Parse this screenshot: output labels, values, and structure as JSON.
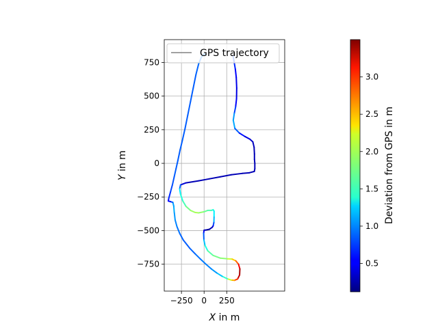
{
  "chart_data": {
    "type": "line",
    "series": [
      {
        "name": "GPS trajectory",
        "color": "#808080",
        "points": [
          [
            320,
            800
          ],
          [
            330,
            760
          ],
          [
            345,
            700
          ],
          [
            355,
            640
          ],
          [
            360,
            560
          ],
          [
            358,
            480
          ],
          [
            348,
            420
          ],
          [
            333,
            370
          ],
          [
            322,
            320
          ],
          [
            340,
            260
          ],
          [
            390,
            225
          ],
          [
            450,
            200
          ],
          [
            505,
            180
          ],
          [
            538,
            160
          ],
          [
            552,
            120
          ],
          [
            556,
            70
          ],
          [
            556,
            30
          ],
          [
            560,
            0
          ],
          [
            560,
            -40
          ],
          [
            555,
            -60
          ],
          [
            500,
            -70
          ],
          [
            420,
            -75
          ],
          [
            300,
            -85
          ],
          [
            180,
            -100
          ],
          [
            60,
            -115
          ],
          [
            -60,
            -130
          ],
          [
            -200,
            -145
          ],
          [
            -260,
            -160
          ],
          [
            -270,
            -190
          ],
          [
            -260,
            -230
          ],
          [
            -235,
            -280
          ],
          [
            -200,
            -320
          ],
          [
            -150,
            -350
          ],
          [
            -100,
            -365
          ],
          [
            -60,
            -368
          ],
          [
            0,
            -360
          ],
          [
            40,
            -350
          ],
          [
            80,
            -350
          ],
          [
            100,
            -345
          ],
          [
            110,
            -355
          ],
          [
            110,
            -400
          ],
          [
            108,
            -440
          ],
          [
            100,
            -465
          ],
          [
            90,
            -475
          ],
          [
            60,
            -490
          ],
          [
            25,
            -495
          ],
          [
            0,
            -497
          ],
          [
            -5,
            -520
          ],
          [
            -2,
            -570
          ],
          [
            10,
            -610
          ],
          [
            40,
            -650
          ],
          [
            100,
            -685
          ],
          [
            180,
            -705
          ],
          [
            260,
            -710
          ],
          [
            310,
            -712
          ],
          [
            350,
            -725
          ],
          [
            380,
            -750
          ],
          [
            395,
            -785
          ],
          [
            392,
            -830
          ],
          [
            370,
            -860
          ],
          [
            335,
            -870
          ],
          [
            300,
            -868
          ],
          [
            255,
            -858
          ],
          [
            200,
            -840
          ],
          [
            140,
            -815
          ],
          [
            80,
            -785
          ],
          [
            20,
            -750
          ],
          [
            -40,
            -712
          ],
          [
            -100,
            -672
          ],
          [
            -160,
            -630
          ],
          [
            -230,
            -570
          ],
          [
            -270,
            -520
          ],
          [
            -300,
            -470
          ],
          [
            -320,
            -420
          ],
          [
            -330,
            -360
          ],
          [
            -335,
            -318
          ],
          [
            -345,
            -290
          ],
          [
            -370,
            -285
          ],
          [
            -395,
            -280
          ],
          [
            -390,
            -260
          ],
          [
            -370,
            -210
          ],
          [
            -350,
            -160
          ],
          [
            -330,
            -100
          ],
          [
            -310,
            -40
          ],
          [
            -290,
            20
          ],
          [
            -265,
            100
          ],
          [
            -240,
            170
          ],
          [
            -210,
            260
          ],
          [
            -180,
            360
          ],
          [
            -150,
            460
          ],
          [
            -120,
            560
          ],
          [
            -90,
            660
          ],
          [
            -60,
            740
          ],
          [
            -30,
            790
          ],
          [
            0,
            812
          ],
          [
            20,
            808
          ]
        ],
        "deviation": [
          0.85,
          0.75,
          0.6,
          0.5,
          0.45,
          0.45,
          0.6,
          0.9,
          1.2,
          1.0,
          0.7,
          0.5,
          0.4,
          0.35,
          0.3,
          0.3,
          0.3,
          0.3,
          0.3,
          0.3,
          0.3,
          0.3,
          0.3,
          0.3,
          0.3,
          0.3,
          0.3,
          0.5,
          1.2,
          1.45,
          1.55,
          1.7,
          1.85,
          1.95,
          1.95,
          1.8,
          1.7,
          1.6,
          1.55,
          1.4,
          1.3,
          1.0,
          0.6,
          0.35,
          0.25,
          0.2,
          0.3,
          0.7,
          1.0,
          1.35,
          1.6,
          1.75,
          1.8,
          1.9,
          2.2,
          2.6,
          2.9,
          3.3,
          3.45,
          3.1,
          2.7,
          2.3,
          1.8,
          1.3,
          1.1,
          1.0,
          0.95,
          0.95,
          0.9,
          0.85,
          0.85,
          0.9,
          0.95,
          1.0,
          1.1,
          1.15,
          1.0,
          0.7,
          0.5,
          0.6,
          0.75,
          0.8,
          0.85,
          0.85,
          0.85,
          0.85,
          0.85,
          0.85,
          0.85,
          0.85,
          0.85,
          0.85,
          0.9,
          0.95,
          1.0,
          1.0
        ]
      }
    ],
    "xlabel": "X in m",
    "xlabel_italic": "X",
    "xlabel_rest": " in m",
    "ylabel": "Y in m",
    "ylabel_italic": "Y",
    "ylabel_rest": " in m",
    "xlim": [
      -440,
      890
    ],
    "ylim": [
      -950,
      920
    ],
    "xticks": [
      -250,
      0,
      250
    ],
    "xtick_labels": [
      "−250",
      "0",
      "250"
    ],
    "yticks": [
      -750,
      -500,
      -250,
      0,
      250,
      500,
      750
    ],
    "ytick_labels": [
      "−750",
      "−500",
      "−250",
      "0",
      "250",
      "500",
      "750"
    ],
    "grid": true,
    "legend": {
      "position": "top-left",
      "label": "GPS trajectory",
      "color": "#808080"
    },
    "colorbar": {
      "label": "Deviation from GPS in m",
      "colormap": "jet",
      "vmin": 0.12,
      "vmax": 3.5,
      "ticks": [
        0.5,
        1.0,
        1.5,
        2.0,
        2.5,
        3.0
      ],
      "tick_labels": [
        "0.5",
        "1.0",
        "1.5",
        "2.0",
        "2.5",
        "3.0"
      ]
    }
  }
}
